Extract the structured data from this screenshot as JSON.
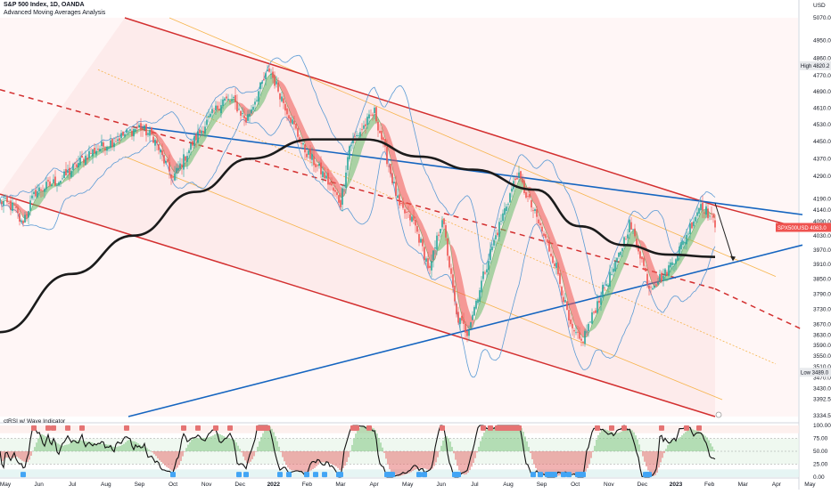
{
  "header": {
    "title": "S&P 500 Index, 1D, OANDA",
    "subtitle": "Advanced Moving Averages Analysis",
    "currency": "USD"
  },
  "price_tag": {
    "label": "SPX500USD",
    "value": "4063.0"
  },
  "high_label": {
    "text": "High",
    "value": "4820.2"
  },
  "low_label": {
    "text": "Low",
    "value": "3489.0"
  },
  "osc_label": "ctRSI w/ Wave Indicator",
  "colors": {
    "bull": "#26a69a",
    "bear": "#ef5350",
    "channel": "#d32f2f",
    "trendline": "#1565c0",
    "ma200": "#1b1b1b",
    "bollinger": "#5b9bd5",
    "fib": "#f5a623"
  },
  "chart_data": [
    {
      "type": "candlestick",
      "title": "S&P 500 Index, 1D, OANDA",
      "ylabel": "USD",
      "y_scale": "log",
      "ylim": [
        3330,
        5070
      ],
      "x_ticks": [
        "May",
        "Jun",
        "Jul",
        "Aug",
        "Sep",
        "Oct",
        "Nov",
        "Dec",
        "2022",
        "Feb",
        "Mar",
        "Apr",
        "May",
        "Jun",
        "Jul",
        "Aug",
        "Sep",
        "Oct",
        "Nov",
        "Dec",
        "2023",
        "Feb",
        "Mar",
        "Apr",
        "May"
      ],
      "y_ticks": [
        3334.5,
        3392.5,
        3430.0,
        3470.0,
        3510.0,
        3550.0,
        3590.0,
        3630.0,
        3670.0,
        3730.0,
        3790.0,
        3850.0,
        3910.0,
        3970.0,
        4030.0,
        4090.0,
        4140.0,
        4190.0,
        4290.0,
        4370.0,
        4450.0,
        4530.0,
        4610.0,
        4690.0,
        4770.0,
        4860.0,
        4950.0,
        5070.0
      ],
      "pivots": [
        {
          "t": 0,
          "v": 4180
        },
        {
          "t": 8,
          "v": 4150
        },
        {
          "t": 12,
          "v": 4080
        },
        {
          "t": 20,
          "v": 4220
        },
        {
          "t": 35,
          "v": 4280
        },
        {
          "t": 50,
          "v": 4395
        },
        {
          "t": 65,
          "v": 4460
        },
        {
          "t": 78,
          "v": 4520
        },
        {
          "t": 86,
          "v": 4470
        },
        {
          "t": 92,
          "v": 4360
        },
        {
          "t": 97,
          "v": 4280
        },
        {
          "t": 110,
          "v": 4470
        },
        {
          "t": 125,
          "v": 4650
        },
        {
          "t": 131,
          "v": 4640
        },
        {
          "t": 138,
          "v": 4550
        },
        {
          "t": 146,
          "v": 4710
        },
        {
          "t": 151,
          "v": 4800
        },
        {
          "t": 155,
          "v": 4720
        },
        {
          "t": 170,
          "v": 4420
        },
        {
          "t": 182,
          "v": 4290
        },
        {
          "t": 191,
          "v": 4170
        },
        {
          "t": 196,
          "v": 4430
        },
        {
          "t": 210,
          "v": 4590
        },
        {
          "t": 224,
          "v": 4150
        },
        {
          "t": 232,
          "v": 4090
        },
        {
          "t": 241,
          "v": 3880
        },
        {
          "t": 248,
          "v": 4110
        },
        {
          "t": 256,
          "v": 3700
        },
        {
          "t": 262,
          "v": 3640
        },
        {
          "t": 275,
          "v": 3960
        },
        {
          "t": 290,
          "v": 4300
        },
        {
          "t": 300,
          "v": 4120
        },
        {
          "t": 312,
          "v": 3900
        },
        {
          "t": 320,
          "v": 3650
        },
        {
          "t": 326,
          "v": 3600
        },
        {
          "t": 331,
          "v": 3680
        },
        {
          "t": 337,
          "v": 3790
        },
        {
          "t": 345,
          "v": 3900
        },
        {
          "t": 353,
          "v": 4080
        },
        {
          "t": 358,
          "v": 3980
        },
        {
          "t": 364,
          "v": 3820
        },
        {
          "t": 373,
          "v": 3870
        },
        {
          "t": 383,
          "v": 4000
        },
        {
          "t": 393,
          "v": 4170
        },
        {
          "t": 401,
          "v": 4080
        }
      ],
      "ma_fast_lag": 5,
      "ma_slow_lag": 12,
      "ma200": [
        {
          "t": 0,
          "v": 3640
        },
        {
          "t": 40,
          "v": 3870
        },
        {
          "t": 75,
          "v": 4030
        },
        {
          "t": 110,
          "v": 4220
        },
        {
          "t": 140,
          "v": 4370
        },
        {
          "t": 175,
          "v": 4460
        },
        {
          "t": 205,
          "v": 4460
        },
        {
          "t": 235,
          "v": 4380
        },
        {
          "t": 265,
          "v": 4320
        },
        {
          "t": 300,
          "v": 4230
        },
        {
          "t": 325,
          "v": 4070
        },
        {
          "t": 350,
          "v": 3990
        },
        {
          "t": 375,
          "v": 3950
        },
        {
          "t": 401,
          "v": 3940
        }
      ],
      "channel_upper": [
        {
          "t": 70,
          "v": 5070
        },
        {
          "t": 401,
          "v": 4160
        }
      ],
      "channel_mid": [
        {
          "t": 0,
          "v": 4700
        },
        {
          "t": 401,
          "v": 3810
        }
      ],
      "channel_lower": [
        {
          "t": 0,
          "v": 4210
        },
        {
          "t": 401,
          "v": 3330
        }
      ],
      "channel_mid_ext": [
        {
          "t": 401,
          "v": 3810
        },
        {
          "t": 450,
          "v": 3650
        }
      ],
      "channel_upper_ext": [
        {
          "t": 401,
          "v": 4160
        },
        {
          "t": 450,
          "v": 4060
        }
      ],
      "fib_lines": [
        [
          {
            "t": 95,
            "v": 5070
          },
          {
            "t": 435,
            "v": 3860
          }
        ],
        [
          {
            "t": 55,
            "v": 4800
          },
          {
            "t": 435,
            "v": 3520
          }
        ],
        [
          {
            "t": 70,
            "v": 4380
          },
          {
            "t": 405,
            "v": 3390
          }
        ]
      ],
      "trend_upper": [
        {
          "t": 78,
          "v": 4520
        },
        {
          "t": 450,
          "v": 4120
        }
      ],
      "trend_lower": [
        {
          "t": 72,
          "v": 3330
        },
        {
          "t": 450,
          "v": 3990
        }
      ],
      "projection_arrow": [
        {
          "t": 401,
          "v": 4170
        },
        {
          "t": 411,
          "v": 3930
        }
      ]
    },
    {
      "type": "line",
      "title": "ctRSI w/ Wave Indicator",
      "ylim": [
        0,
        100
      ],
      "y_ticks": [
        0.0,
        25.0,
        50.0,
        75.0,
        100.0
      ],
      "levels": [
        25,
        50,
        75
      ],
      "signal_labels": [
        "A",
        "B",
        "S"
      ]
    }
  ]
}
